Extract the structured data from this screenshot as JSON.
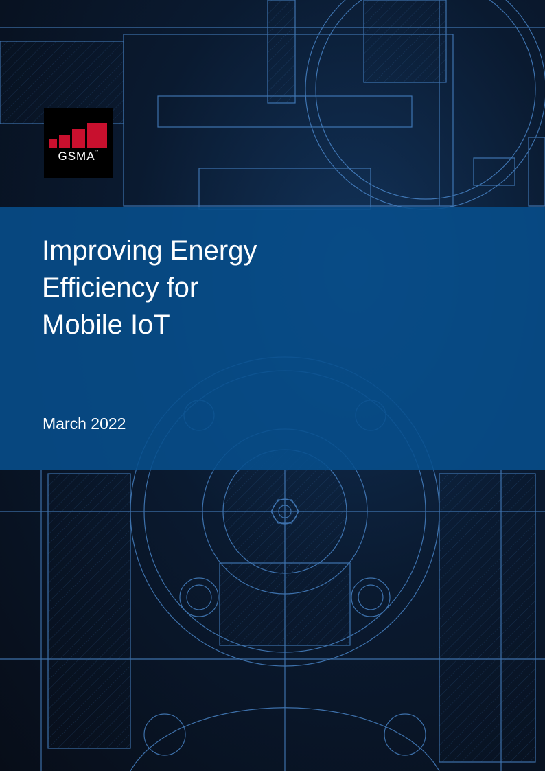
{
  "cover": {
    "logo_text": "GSMA",
    "logo_trademark": "™",
    "title_lines": [
      "Improving Energy",
      "Efficiency for",
      "Mobile IoT"
    ],
    "date": "March 2022"
  },
  "colors": {
    "band": "#074e8c",
    "logo_red": "#c8102e",
    "logo_background": "#000000",
    "line_art": "#4f8fd6"
  }
}
